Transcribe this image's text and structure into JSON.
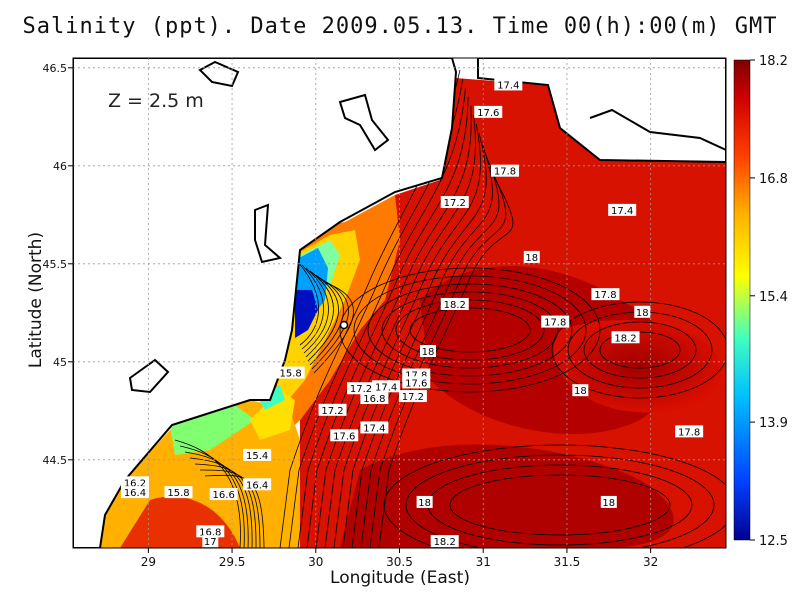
{
  "title": "Salinity (ppt). Date 2009.05.13. Time 00(h):00(m) GMT",
  "depth_label": "Z = 2.5 m",
  "chart_data": {
    "type": "heatmap",
    "title": "Salinity (ppt). Date 2009.05.13. Time 00(h):00(m) GMT",
    "xlabel": "Longitude (East)",
    "ylabel": "Latitude (North)",
    "xlim": [
      28.55,
      32.45
    ],
    "ylim": [
      44.05,
      46.55
    ],
    "x_ticks": [
      "29",
      "29.5",
      "30",
      "30.5",
      "31",
      "31.5",
      "32"
    ],
    "y_ticks": [
      "44.5",
      "45",
      "45.5",
      "46",
      "46.5"
    ],
    "grid": true,
    "colorbar": {
      "min": 12.5,
      "max": 18.2,
      "ticks": [
        "18.2",
        "16.8",
        "15.4",
        "13.9",
        "12.5"
      ],
      "colors": [
        "#00008f",
        "#0040ff",
        "#00c0ff",
        "#40ffbf",
        "#ffff00",
        "#ffb000",
        "#ff4000",
        "#d00000",
        "#7f0000"
      ]
    },
    "contour_labels": [
      {
        "text": "17.4",
        "lon": 31.15,
        "lat": 46.41
      },
      {
        "text": "17.6",
        "lon": 31.03,
        "lat": 46.27
      },
      {
        "text": "17.8",
        "lon": 31.13,
        "lat": 45.97
      },
      {
        "text": "17.2",
        "lon": 30.83,
        "lat": 45.81
      },
      {
        "text": "17.4",
        "lon": 31.83,
        "lat": 45.77
      },
      {
        "text": "18",
        "lon": 31.29,
        "lat": 45.53
      },
      {
        "text": "17.8",
        "lon": 31.73,
        "lat": 45.34
      },
      {
        "text": "18.2",
        "lon": 30.83,
        "lat": 45.29
      },
      {
        "text": "18",
        "lon": 31.95,
        "lat": 45.25
      },
      {
        "text": "17.8",
        "lon": 31.43,
        "lat": 45.2
      },
      {
        "text": "18.2",
        "lon": 31.85,
        "lat": 45.12
      },
      {
        "text": "18",
        "lon": 30.67,
        "lat": 45.05
      },
      {
        "text": "17.8",
        "lon": 30.6,
        "lat": 44.93
      },
      {
        "text": "17.6",
        "lon": 30.6,
        "lat": 44.89
      },
      {
        "text": "17.4",
        "lon": 30.42,
        "lat": 44.87
      },
      {
        "text": "17.2",
        "lon": 30.27,
        "lat": 44.86
      },
      {
        "text": "16.8",
        "lon": 30.35,
        "lat": 44.81
      },
      {
        "text": "17.2",
        "lon": 30.58,
        "lat": 44.82
      },
      {
        "text": "18",
        "lon": 31.58,
        "lat": 44.85
      },
      {
        "text": "17.2",
        "lon": 30.1,
        "lat": 44.75
      },
      {
        "text": "17.4",
        "lon": 30.35,
        "lat": 44.66
      },
      {
        "text": "17.6",
        "lon": 30.17,
        "lat": 44.62
      },
      {
        "text": "17.8",
        "lon": 32.23,
        "lat": 44.64
      },
      {
        "text": "15.8",
        "lon": 29.85,
        "lat": 44.94
      },
      {
        "text": "15.4",
        "lon": 29.65,
        "lat": 44.52
      },
      {
        "text": "16.4",
        "lon": 29.65,
        "lat": 44.37
      },
      {
        "text": "16.2",
        "lon": 28.92,
        "lat": 44.38
      },
      {
        "text": "16.4",
        "lon": 28.92,
        "lat": 44.33
      },
      {
        "text": "15.8",
        "lon": 29.18,
        "lat": 44.33
      },
      {
        "text": "16.6",
        "lon": 29.45,
        "lat": 44.32
      },
      {
        "text": "18",
        "lon": 30.65,
        "lat": 44.28
      },
      {
        "text": "18",
        "lon": 31.75,
        "lat": 44.28
      },
      {
        "text": "16.8",
        "lon": 29.37,
        "lat": 44.13
      },
      {
        "text": "17",
        "lon": 29.37,
        "lat": 44.08
      },
      {
        "text": "18.2",
        "lon": 30.77,
        "lat": 44.08
      }
    ]
  }
}
